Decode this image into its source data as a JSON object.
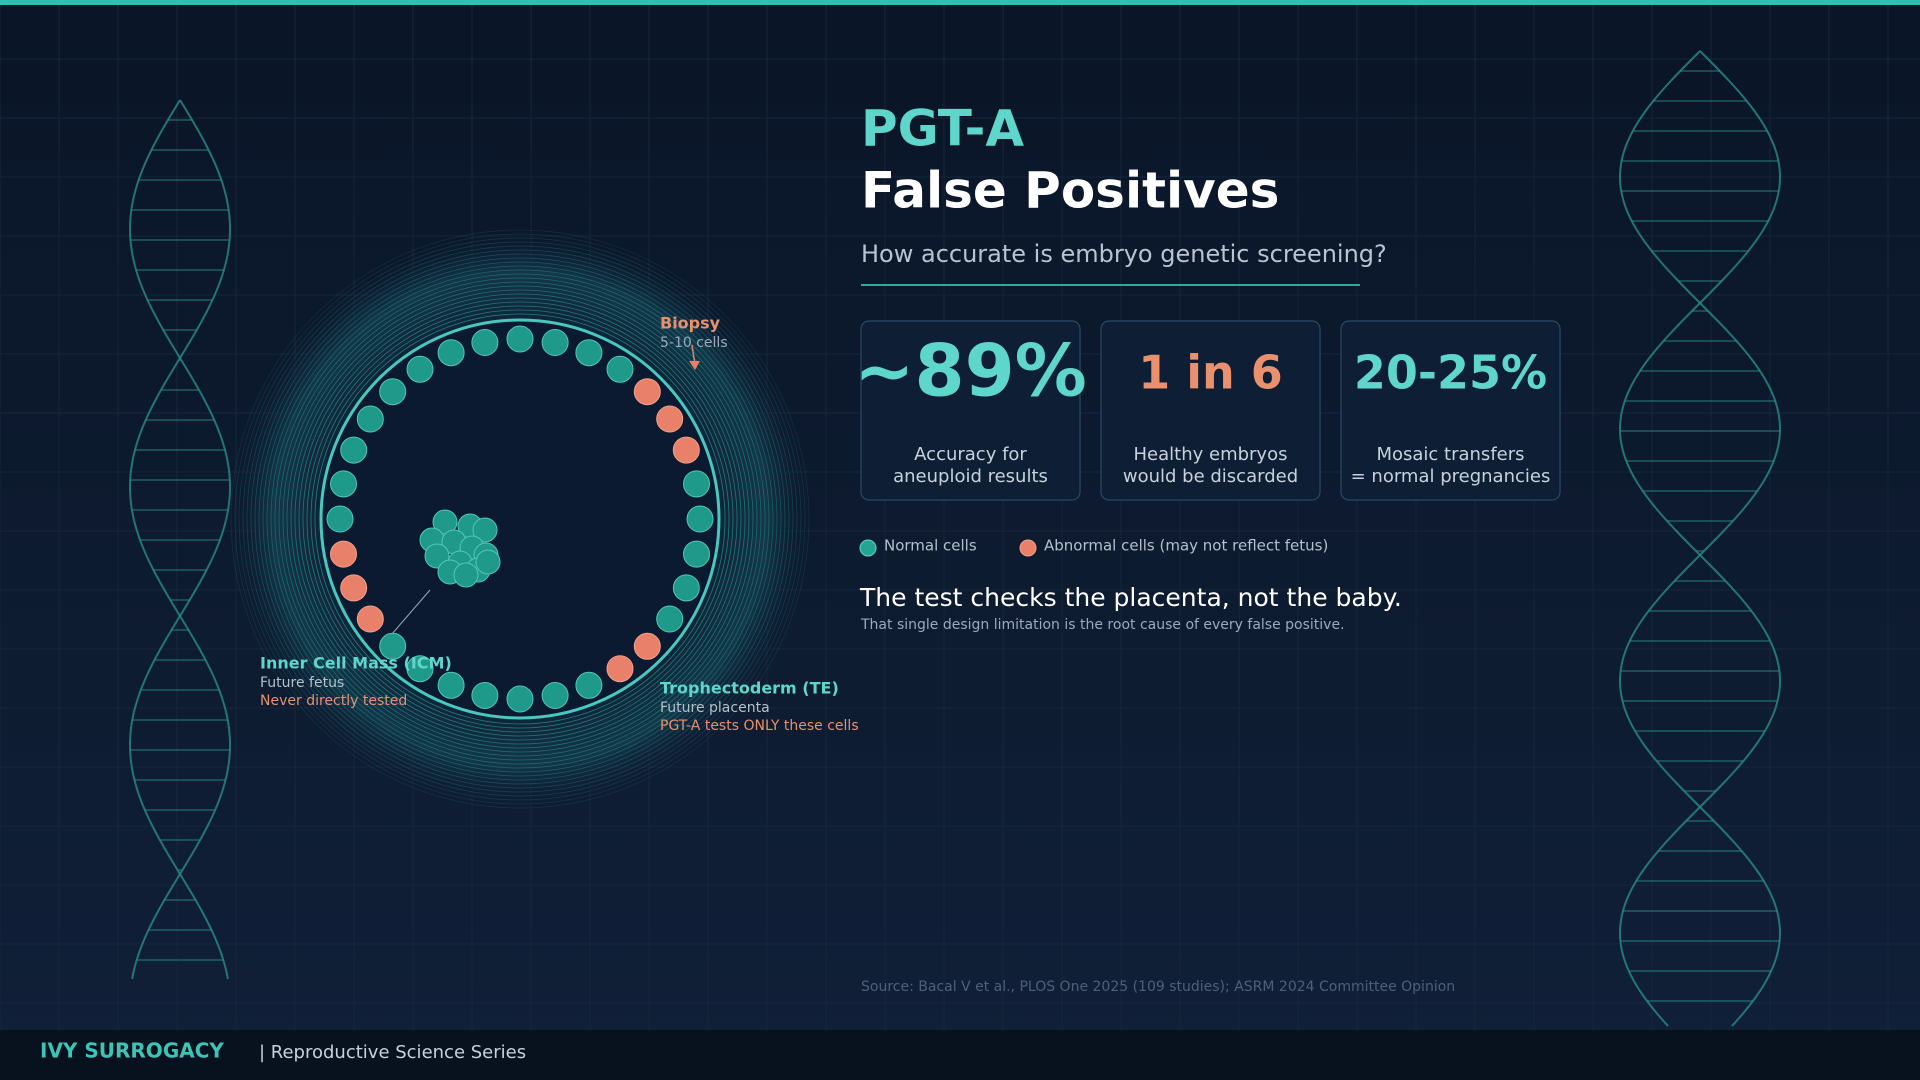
{
  "header": {
    "title_line1": "PGT-A",
    "title_line2": "False Positives",
    "subtitle": "How accurate is embryo genetic screening?"
  },
  "stats": [
    {
      "value": "~89%",
      "label_lines": [
        "Accuracy for",
        "aneuploid results"
      ]
    },
    {
      "value": "1 in 6",
      "label_lines": [
        "Healthy embryos",
        "would be discarded"
      ]
    },
    {
      "value": "20-25%",
      "label_lines": [
        "Mosaic transfers",
        "= normal pregnancies"
      ]
    }
  ],
  "legend": {
    "normal": "Normal cells",
    "abnormal": "Abnormal cells (may not reflect fetus)"
  },
  "statement": {
    "headline": "The test checks the placenta, not the baby.",
    "detail": "That single design limitation is the root cause of every false positive."
  },
  "diagram": {
    "biopsy": {
      "title": "Biopsy",
      "detail": "5-10 cells"
    },
    "icm": {
      "title": "Inner Cell Mass (ICM)",
      "line1": "Future fetus",
      "line2": "Never directly tested"
    },
    "te": {
      "title": "Trophectoderm (TE)",
      "line1": "Future placenta",
      "line2": "PGT-A tests ONLY these cells"
    }
  },
  "source": "Source: Bacal V et al., PLOS One 2025 (109 studies); ASRM 2024 Committee Opinion",
  "footer": {
    "brand": "IVY SURROGACY",
    "series": "| Reproductive Science Series"
  }
}
